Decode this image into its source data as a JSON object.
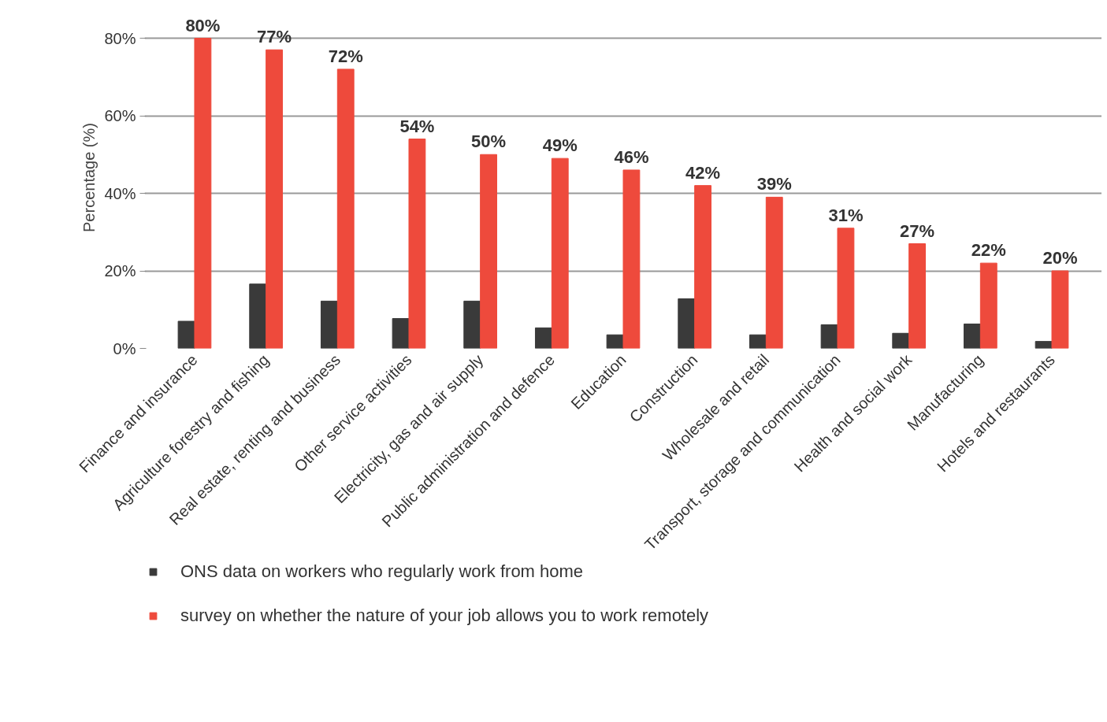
{
  "chart_data": {
    "type": "bar",
    "ylabel": "Percentage (%)",
    "categories": [
      "Finance and insurance",
      "Agriculture forestry and fishing",
      "Real estate, renting and business",
      "Other service activities",
      "Electricity, gas and air supply",
      "Public administration and defence",
      "Education",
      "Construction",
      "Wholesale and retail",
      "Transport, storage and communication",
      "Health and social work",
      "Manufacturing",
      "Hotels and restaurants"
    ],
    "series": [
      {
        "name": "ONS data on workers who regularly work from home",
        "color": "#3a3a3a",
        "values": [
          7,
          16.6,
          12.2,
          7.7,
          12.2,
          5.3,
          3.5,
          12.8,
          3.5,
          6.1,
          3.9,
          6.3,
          1.8
        ]
      },
      {
        "name": "survey on whether the nature of your job allows you to work remotely",
        "color": "#ee4a3c",
        "values": [
          80,
          77,
          72,
          54,
          50,
          49,
          46,
          42,
          39,
          31,
          27,
          22,
          20
        ],
        "value_labels": [
          "80%",
          "77%",
          "72%",
          "54%",
          "50%",
          "49%",
          "46%",
          "42%",
          "39%",
          "31%",
          "27%",
          "22%",
          "20%"
        ]
      }
    ],
    "ylim": [
      0,
      80
    ],
    "yticks": [
      {
        "value": 0,
        "label": "0%"
      },
      {
        "value": 20,
        "label": "20%"
      },
      {
        "value": 40,
        "label": "40%"
      },
      {
        "value": 60,
        "label": "60%"
      },
      {
        "value": 80,
        "label": "80%"
      }
    ],
    "grid": "y",
    "legend": "bottom"
  }
}
